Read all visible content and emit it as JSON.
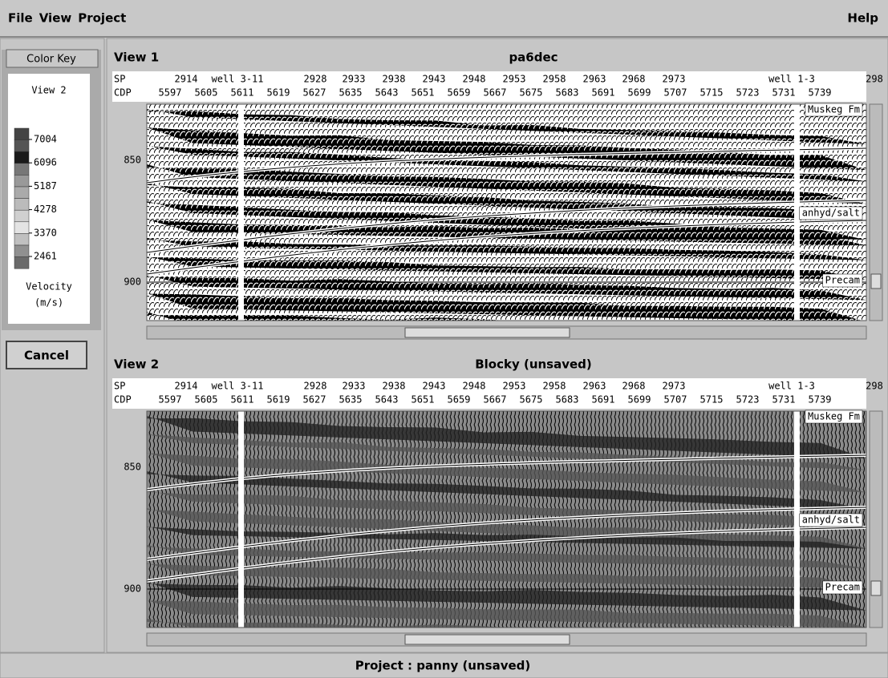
{
  "menu": {
    "items": [
      "File",
      "View",
      "Project"
    ],
    "help": "Help"
  },
  "color_key": {
    "button": "Color Key",
    "view": "View 2",
    "legend": [
      "7004",
      "6096",
      "5187",
      "4278",
      "3370",
      "2461"
    ],
    "label": "Velocity",
    "unit": "(m/s)",
    "cancel": "Cancel"
  },
  "views": [
    {
      "title": "View 1",
      "name": "pa6dec",
      "sp_label": "SP",
      "cdp_label": "CDP",
      "sp": [
        "2914",
        "well 3-11",
        "2928",
        "2933",
        "2938",
        "2943",
        "2948",
        "2953",
        "2958",
        "2963",
        "2968",
        "2973",
        "well 1-3",
        "298"
      ],
      "cdp": [
        "5597",
        "5605",
        "5611",
        "5619",
        "5627",
        "5635",
        "5643",
        "5651",
        "5659",
        "5667",
        "5675",
        "5683",
        "5691",
        "5699",
        "5707",
        "5715",
        "5723",
        "5731",
        "5739"
      ],
      "y_ticks": [
        "850",
        "900"
      ],
      "horizons": [
        "Muskeg Fm",
        "anhyd/salt",
        "Precam"
      ]
    },
    {
      "title": "View 2",
      "name": "Blocky (unsaved)",
      "sp_label": "SP",
      "cdp_label": "CDP",
      "sp": [
        "2914",
        "well 3-11",
        "2928",
        "2933",
        "2938",
        "2943",
        "2948",
        "2953",
        "2958",
        "2963",
        "2968",
        "2973",
        "well 1-3",
        "298"
      ],
      "cdp": [
        "5597",
        "5605",
        "5611",
        "5619",
        "5627",
        "5635",
        "5643",
        "5651",
        "5659",
        "5667",
        "5675",
        "5683",
        "5691",
        "5699",
        "5707",
        "5715",
        "5723",
        "5731",
        "5739"
      ],
      "y_ticks": [
        "850",
        "900"
      ],
      "horizons": [
        "Muskeg Fm",
        "anhyd/salt",
        "Precam"
      ]
    }
  ],
  "status": "Project : panny (unsaved)"
}
